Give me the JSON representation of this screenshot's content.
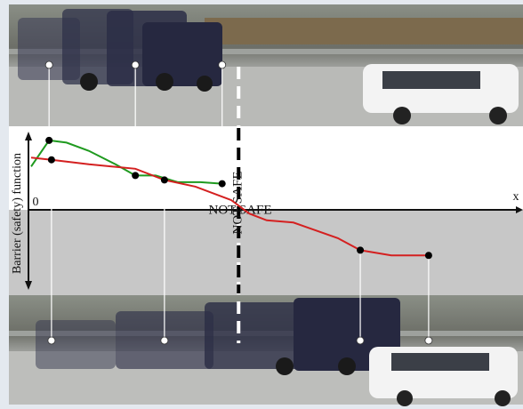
{
  "chart_data": {
    "type": "line",
    "y_label": "Barrier (safety) function",
    "x_label": "x",
    "zero_label": "0",
    "region_label": "NOT SAFE",
    "boundary_label": "NOT SAFE",
    "xlim": [
      0,
      100
    ],
    "ylim": [
      -1,
      1
    ],
    "threshold_x": 42.8,
    "series": [
      {
        "color": "#1f9a1f",
        "x": [
          0,
          3.7,
          7.3,
          11.9,
          17.4,
          21.5,
          25.7,
          30.3,
          34.9,
          39.4
        ],
        "values": [
          0.58,
          0.93,
          0.9,
          0.79,
          0.61,
          0.46,
          0.46,
          0.37,
          0.37,
          0.35
        ],
        "markers": [
          1,
          5,
          9
        ],
        "photo": "top"
      },
      {
        "color": "#d42020",
        "x": [
          0,
          4.2,
          11.9,
          21.5,
          27.5,
          33.9,
          41.3,
          45,
          48.6,
          54.1,
          63.3,
          67.9,
          74.3,
          82
        ],
        "values": [
          0.7,
          0.67,
          0.61,
          0.55,
          0.4,
          0.31,
          0.13,
          -0.05,
          -0.14,
          -0.17,
          -0.38,
          -0.54,
          -0.61,
          -0.61
        ],
        "markers": [
          1,
          4,
          11,
          13
        ],
        "photo": "bottom"
      }
    ]
  }
}
